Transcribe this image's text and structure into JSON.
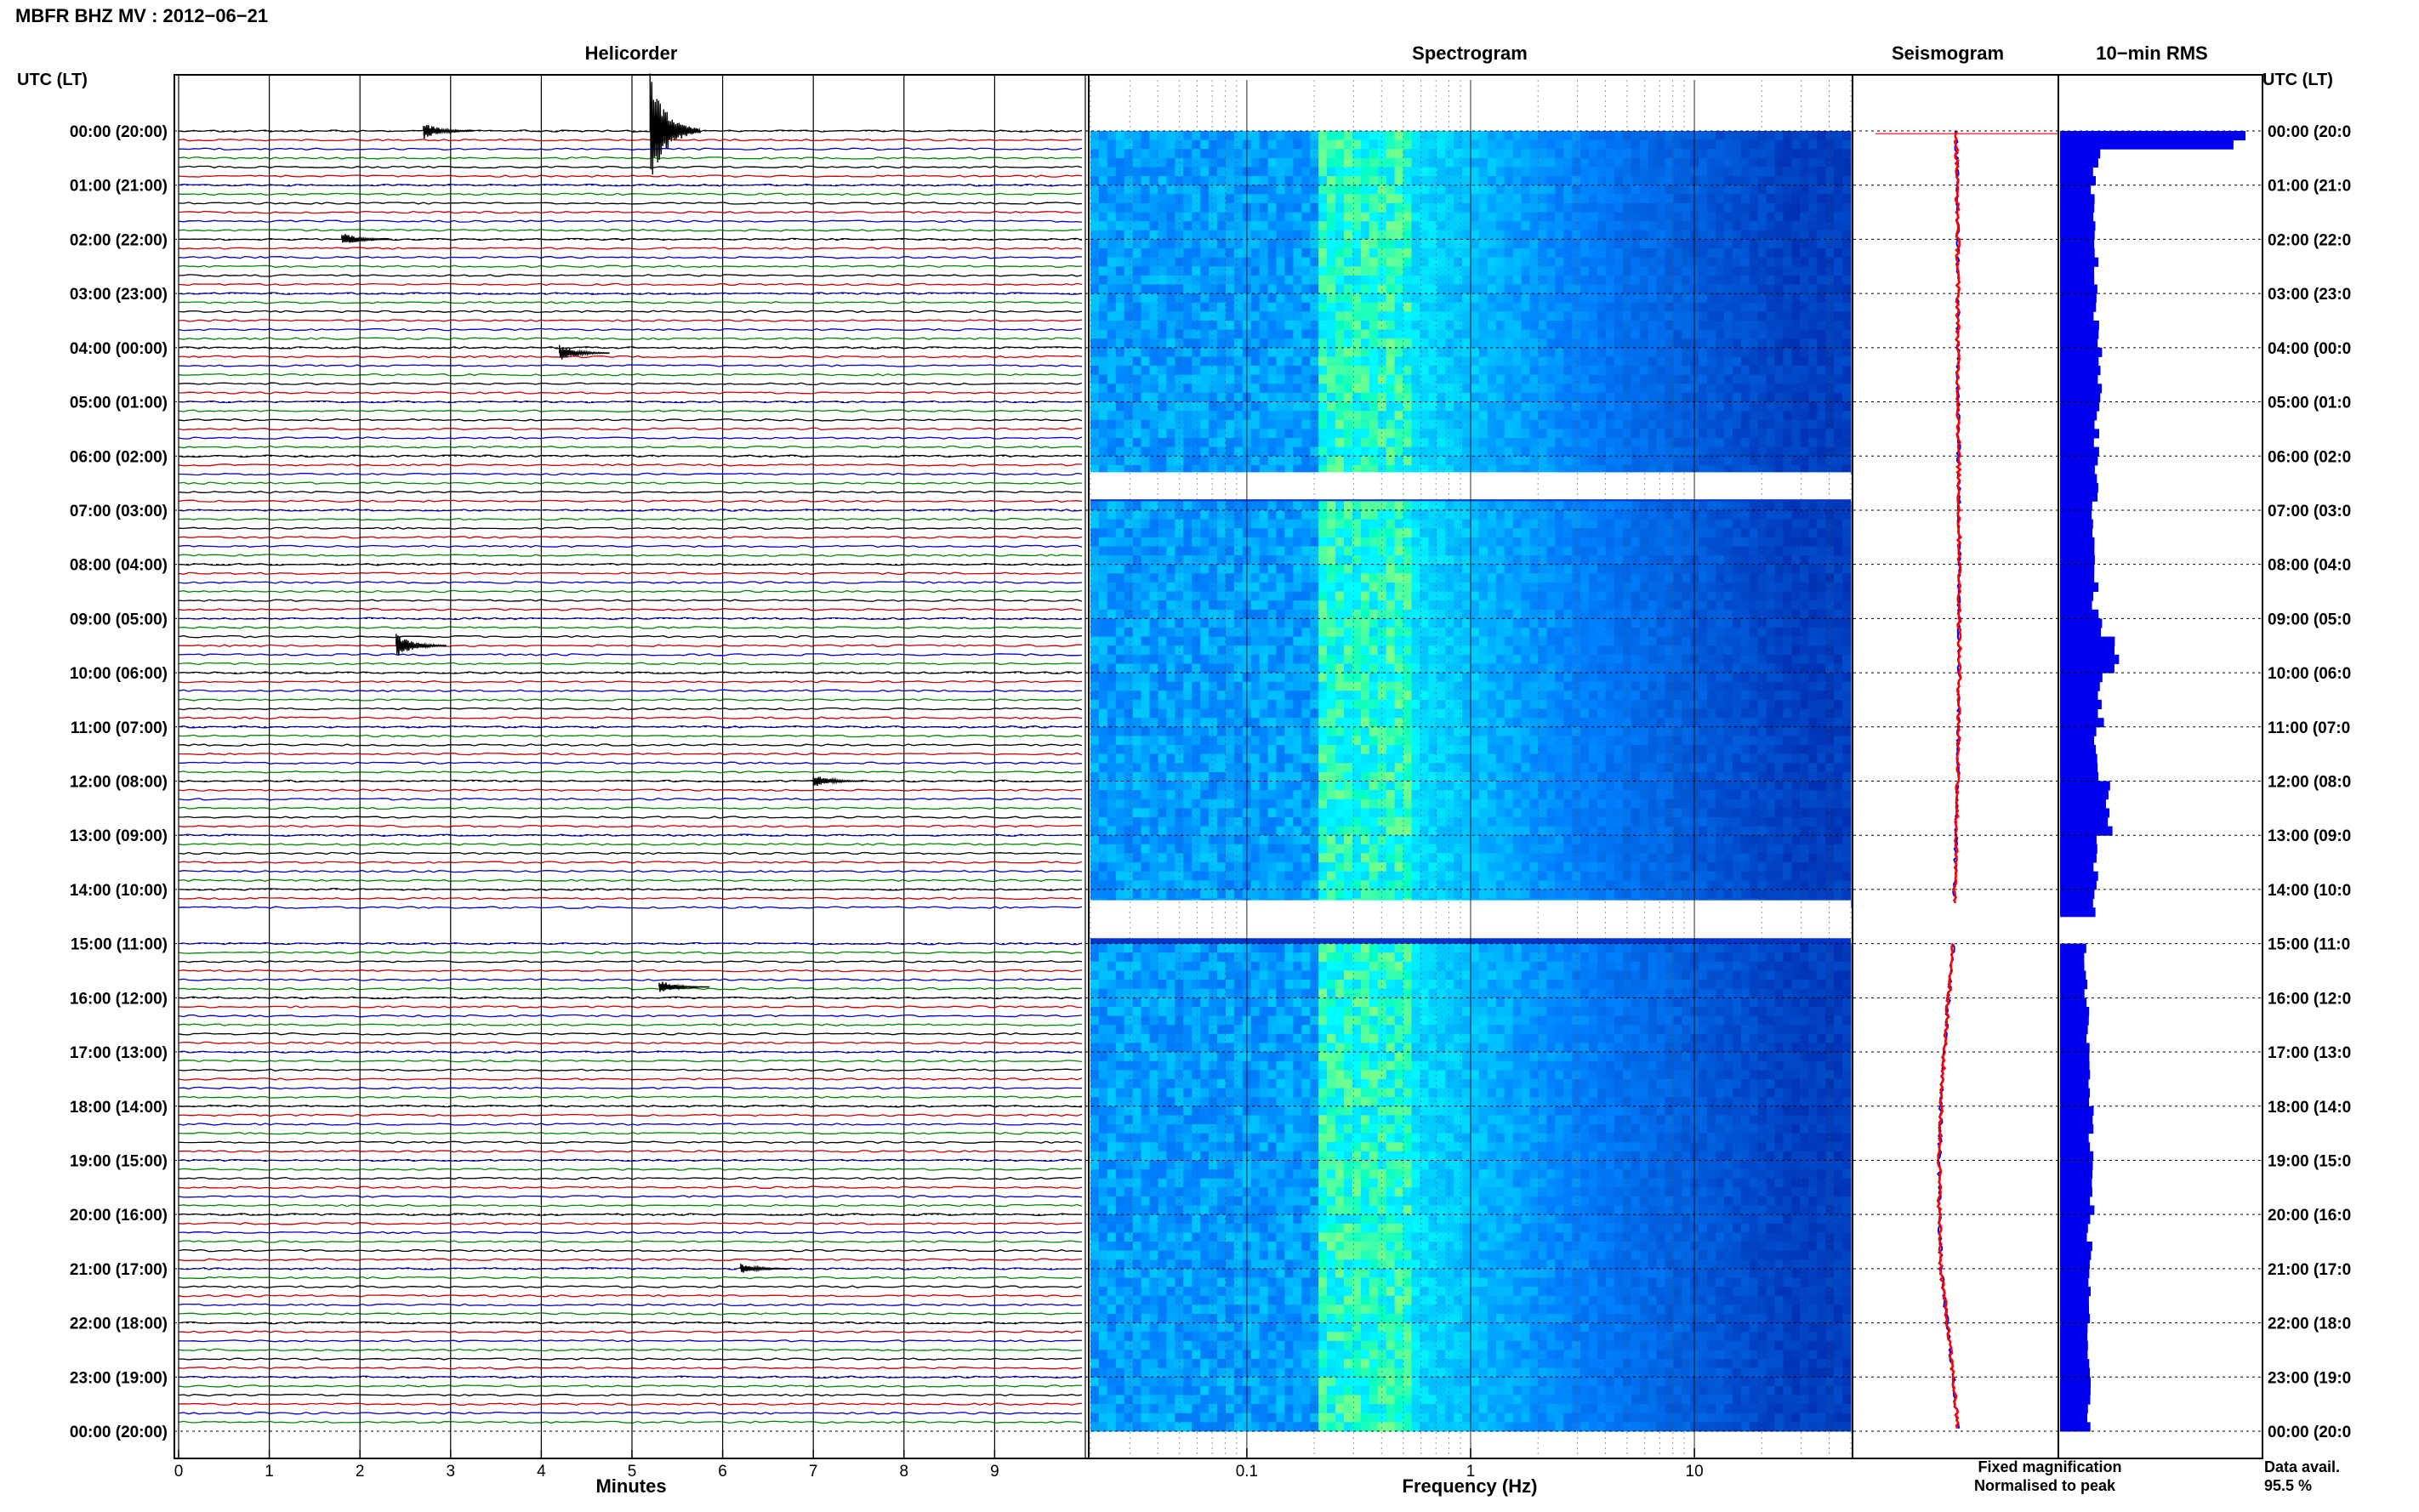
{
  "header": {
    "title": "MBFR BHZ MV : 2012−06−21"
  },
  "panels": {
    "helicorder": "Helicorder",
    "spectrogram": "Spectrogram",
    "seismogram": "Seismogram",
    "rms": "10−min RMS"
  },
  "left_axis_title": "UTC (LT)",
  "right_axis_title": "UTC (LT)",
  "time_labels_left": [
    "00:00 (20:00)",
    "01:00 (21:00)",
    "02:00 (22:00)",
    "03:00 (23:00)",
    "04:00 (00:00)",
    "05:00 (01:00)",
    "06:00 (02:00)",
    "07:00 (03:00)",
    "08:00 (04:00)",
    "09:00 (05:00)",
    "10:00 (06:00)",
    "11:00 (07:00)",
    "12:00 (08:00)",
    "13:00 (09:00)",
    "14:00 (10:00)",
    "15:00 (11:00)",
    "16:00 (12:00)",
    "17:00 (13:00)",
    "18:00 (14:00)",
    "19:00 (15:00)",
    "20:00 (16:00)",
    "21:00 (17:00)",
    "22:00 (18:00)",
    "23:00 (19:00)",
    "00:00 (20:00)"
  ],
  "time_labels_right": [
    "00:00 (20:0",
    "01:00 (21:0",
    "02:00 (22:0",
    "03:00 (23:0",
    "04:00 (00:0",
    "05:00 (01:0",
    "06:00 (02:0",
    "07:00 (03:0",
    "08:00 (04:0",
    "09:00 (05:0",
    "10:00 (06:0",
    "11:00 (07:0",
    "12:00 (08:0",
    "13:00 (09:0",
    "14:00 (10:0",
    "15:00 (11:0",
    "16:00 (12:0",
    "17:00 (13:0",
    "18:00 (14:0",
    "19:00 (15:0",
    "20:00 (16:0",
    "21:00 (17:0",
    "22:00 (18:0",
    "23:00 (19:0",
    "00:00 (20:0"
  ],
  "helicorder_x": {
    "ticks": [
      "0",
      "1",
      "2",
      "3",
      "4",
      "5",
      "6",
      "7",
      "8",
      "9"
    ],
    "label": "Minutes"
  },
  "spectrogram_x": {
    "ticks": [
      "0.1",
      "1",
      "10"
    ],
    "label": "Frequency (Hz)"
  },
  "legend": {
    "fixed": "Fixed magnification",
    "normalised": "Normalised to peak"
  },
  "data_avail": {
    "label": "Data avail.",
    "value": "95.5 %"
  },
  "colors": {
    "trace_cycle": [
      "#000000",
      "#cc0000",
      "#0000cc",
      "#008800"
    ],
    "fixed": "#0000ff",
    "normalised": "#ff0000",
    "rms_bar": "#0000ee",
    "spectrogram_low": "#0000aa",
    "spectrogram_high": "#00ffff"
  },
  "chart_data": [
    {
      "type": "line",
      "name": "helicorder",
      "title": "Helicorder",
      "xlabel": "Minutes",
      "xlim": [
        0,
        10
      ],
      "ylim": [
        0,
        24
      ],
      "ylabel": "UTC (LT)",
      "lines_per_hour": 6,
      "missing_hours": [
        14
      ],
      "events": [
        {
          "hour": 0.0,
          "minute": 5.2,
          "amplitude": 3.5
        },
        {
          "hour": 0.0,
          "minute": 2.7,
          "amplitude": 0.5
        },
        {
          "hour": 2.0,
          "minute": 1.8,
          "amplitude": 0.4
        },
        {
          "hour": 4.1,
          "minute": 4.2,
          "amplitude": 0.5
        },
        {
          "hour": 9.5,
          "minute": 2.4,
          "amplitude": 0.7
        },
        {
          "hour": 12.0,
          "minute": 7.0,
          "amplitude": 0.4
        },
        {
          "hour": 15.8,
          "minute": 5.3,
          "amplitude": 0.4
        },
        {
          "hour": 21.0,
          "minute": 6.2,
          "amplitude": 0.3
        }
      ]
    },
    {
      "type": "heatmap",
      "name": "spectrogram",
      "title": "Spectrogram",
      "xlabel": "Frequency (Hz)",
      "x_scale": "log",
      "xlim": [
        0.02,
        50
      ],
      "ylim": [
        0,
        24
      ],
      "peak_band_hz": [
        0.2,
        0.5
      ],
      "gap_hours": [
        6.3,
        6.8,
        14.2,
        14.9
      ]
    },
    {
      "type": "line",
      "name": "seismogram",
      "title": "Seismogram",
      "series": [
        {
          "name": "Fixed magnification"
        },
        {
          "name": "Normalised to peak"
        }
      ],
      "hours": [
        0,
        2,
        4,
        6,
        8,
        10,
        12,
        14,
        15,
        16,
        17,
        18,
        19,
        20,
        21,
        22,
        23,
        24
      ],
      "offsets": [
        0,
        0.1,
        0.1,
        0.15,
        0.2,
        0.2,
        0.1,
        -0.1,
        -0.2,
        -0.5,
        -0.8,
        -1.0,
        -1.1,
        -1.1,
        -1.0,
        -0.6,
        -0.2,
        0.1
      ]
    },
    {
      "type": "bar",
      "name": "rms",
      "title": "10−min RMS",
      "xlim": [
        0,
        1
      ],
      "hours": [
        0.0,
        0.17,
        0.33,
        0.5,
        0.67,
        0.83,
        1,
        2,
        3,
        4,
        5,
        6,
        7,
        8,
        9,
        9.3,
        9.5,
        10,
        11,
        12,
        12.5,
        13,
        14,
        15,
        16,
        17,
        18,
        19,
        20,
        21,
        22,
        23
      ],
      "values": [
        1.0,
        0.22,
        0.2,
        0.19,
        0.19,
        0.18,
        0.18,
        0.19,
        0.2,
        0.22,
        0.2,
        0.19,
        0.18,
        0.19,
        0.22,
        0.28,
        0.3,
        0.22,
        0.2,
        0.25,
        0.26,
        0.2,
        0.18,
        0.14,
        0.15,
        0.16,
        0.17,
        0.17,
        0.16,
        0.16,
        0.15,
        0.15
      ]
    }
  ]
}
